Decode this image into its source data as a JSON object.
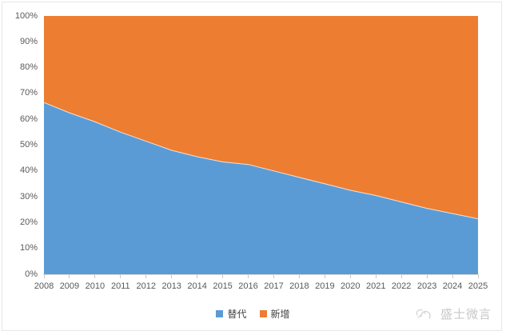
{
  "figure": {
    "watermark": {
      "text": "盛士微言"
    }
  },
  "chart_data": {
    "type": "area",
    "stacking": "percent",
    "title": "",
    "xlabel": "",
    "ylabel": "",
    "ylim": [
      0,
      100
    ],
    "grid": false,
    "legend_position": "bottom-center",
    "x": [
      2008,
      2009,
      2010,
      2011,
      2012,
      2013,
      2014,
      2015,
      2016,
      2017,
      2018,
      2019,
      2020,
      2021,
      2022,
      2023,
      2024,
      2025
    ],
    "y_ticks": [
      "0%",
      "10%",
      "20%",
      "30%",
      "40%",
      "50%",
      "60%",
      "70%",
      "80%",
      "90%",
      "100%"
    ],
    "series": [
      {
        "name": "替代",
        "color": "#5B9BD5",
        "values": [
          66.5,
          62.5,
          59,
          55,
          51.5,
          48,
          45.5,
          43.5,
          42.5,
          40,
          37.5,
          35,
          32.5,
          30.5,
          28,
          25.5,
          23.5,
          21.5
        ]
      },
      {
        "name": "新增",
        "color": "#ED7D31",
        "values": [
          33.5,
          37.5,
          41,
          45,
          48.5,
          52,
          54.5,
          56.5,
          57.5,
          60,
          62.5,
          65,
          67.5,
          69.5,
          72,
          74.5,
          76.5,
          78.5
        ]
      }
    ]
  }
}
